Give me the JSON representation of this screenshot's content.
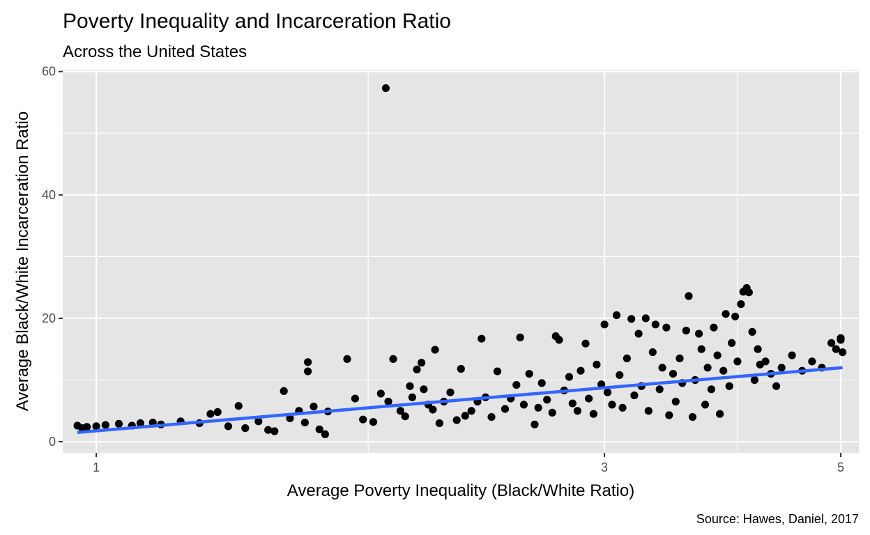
{
  "chart_data": {
    "type": "scatter",
    "title": "Poverty Inequality and Incarceration Ratio",
    "subtitle": "Across the United States",
    "xlabel": "Average Poverty Inequality (Black/White Ratio)",
    "ylabel": "Average Black/White Incarceration Ratio",
    "caption": "Source: Hawes, Daniel, 2017",
    "x_scale": "log",
    "xlim": [
      0.93,
      5.2
    ],
    "ylim": [
      -1.8,
      60.3
    ],
    "x_ticks": [
      {
        "value": 1,
        "label": "1"
      },
      {
        "value": 3,
        "label": "3"
      },
      {
        "value": 5,
        "label": "5"
      }
    ],
    "x_minor_gridlines": [
      1.8,
      4
    ],
    "y_ticks": [
      {
        "value": 0,
        "label": "0"
      },
      {
        "value": 20,
        "label": "20"
      },
      {
        "value": 40,
        "label": "40"
      },
      {
        "value": 60,
        "label": "60"
      }
    ],
    "y_minor_gridlines": [
      10,
      30,
      50
    ],
    "grid": true,
    "colors": {
      "panel": "#e5e5e5",
      "grid": "#ffffff",
      "points": "#000000",
      "fit_line": "#3366ff"
    },
    "fit_line": {
      "method": "lm",
      "points": [
        [
          0.96,
          1.5
        ],
        [
          5.02,
          12.0
        ]
      ]
    },
    "series": [
      {
        "values": [
          [
            0.96,
            2.6
          ],
          [
            0.97,
            2.2
          ],
          [
            0.98,
            2.4
          ],
          [
            1.0,
            2.5
          ],
          [
            1.02,
            2.7
          ],
          [
            1.05,
            2.9
          ],
          [
            1.08,
            2.6
          ],
          [
            1.1,
            3.0
          ],
          [
            1.13,
            3.1
          ],
          [
            1.15,
            2.8
          ],
          [
            1.2,
            3.3
          ],
          [
            1.25,
            3.0
          ],
          [
            1.28,
            4.5
          ],
          [
            1.3,
            4.8
          ],
          [
            1.33,
            2.5
          ],
          [
            1.36,
            5.8
          ],
          [
            1.38,
            2.2
          ],
          [
            1.42,
            3.3
          ],
          [
            1.45,
            1.9
          ],
          [
            1.47,
            1.7
          ],
          [
            1.5,
            8.2
          ],
          [
            1.52,
            3.8
          ],
          [
            1.55,
            5.0
          ],
          [
            1.57,
            3.1
          ],
          [
            1.58,
            12.9
          ],
          [
            1.58,
            11.4
          ],
          [
            1.6,
            5.7
          ],
          [
            1.62,
            2.0
          ],
          [
            1.64,
            1.2
          ],
          [
            1.65,
            4.9
          ],
          [
            1.72,
            13.4
          ],
          [
            1.75,
            7.0
          ],
          [
            1.78,
            3.6
          ],
          [
            1.82,
            3.2
          ],
          [
            1.85,
            7.8
          ],
          [
            1.88,
            6.5
          ],
          [
            1.9,
            13.4
          ],
          [
            1.93,
            5.0
          ],
          [
            1.95,
            4.1
          ],
          [
            1.97,
            9.0
          ],
          [
            1.98,
            7.2
          ],
          [
            2.0,
            11.7
          ],
          [
            2.02,
            12.8
          ],
          [
            2.03,
            8.5
          ],
          [
            2.05,
            6.0
          ],
          [
            2.07,
            5.2
          ],
          [
            2.08,
            14.9
          ],
          [
            2.1,
            3.0
          ],
          [
            2.12,
            6.5
          ],
          [
            2.15,
            8.0
          ],
          [
            2.18,
            3.5
          ],
          [
            2.2,
            11.8
          ],
          [
            2.22,
            4.2
          ],
          [
            2.25,
            5.0
          ],
          [
            2.28,
            6.5
          ],
          [
            2.3,
            16.7
          ],
          [
            2.32,
            7.2
          ],
          [
            2.35,
            4.0
          ],
          [
            2.38,
            11.4
          ],
          [
            2.42,
            5.3
          ],
          [
            2.45,
            7.0
          ],
          [
            2.48,
            9.2
          ],
          [
            2.5,
            16.9
          ],
          [
            2.52,
            6.0
          ],
          [
            2.55,
            11.0
          ],
          [
            2.58,
            2.8
          ],
          [
            2.6,
            5.5
          ],
          [
            2.62,
            9.5
          ],
          [
            2.65,
            6.8
          ],
          [
            2.68,
            4.7
          ],
          [
            2.7,
            17.1
          ],
          [
            2.72,
            16.5
          ],
          [
            2.75,
            8.3
          ],
          [
            2.78,
            10.5
          ],
          [
            2.8,
            6.2
          ],
          [
            2.83,
            5.0
          ],
          [
            2.85,
            11.5
          ],
          [
            2.88,
            15.9
          ],
          [
            2.9,
            7.0
          ],
          [
            2.93,
            4.5
          ],
          [
            2.95,
            12.5
          ],
          [
            2.98,
            9.3
          ],
          [
            3.0,
            19.0
          ],
          [
            3.02,
            8.0
          ],
          [
            3.05,
            6.0
          ],
          [
            3.08,
            20.5
          ],
          [
            3.1,
            10.8
          ],
          [
            3.12,
            5.5
          ],
          [
            3.15,
            13.5
          ],
          [
            3.18,
            19.9
          ],
          [
            3.2,
            7.5
          ],
          [
            3.23,
            17.5
          ],
          [
            3.25,
            9.0
          ],
          [
            3.28,
            20.0
          ],
          [
            3.3,
            5.0
          ],
          [
            3.33,
            14.5
          ],
          [
            3.35,
            19.0
          ],
          [
            3.38,
            8.5
          ],
          [
            3.4,
            12.0
          ],
          [
            3.43,
            18.5
          ],
          [
            3.45,
            4.3
          ],
          [
            3.48,
            11.0
          ],
          [
            3.5,
            6.5
          ],
          [
            3.53,
            13.5
          ],
          [
            3.55,
            9.5
          ],
          [
            3.58,
            18.0
          ],
          [
            3.6,
            23.6
          ],
          [
            3.63,
            4.0
          ],
          [
            3.65,
            10.0
          ],
          [
            3.68,
            17.5
          ],
          [
            3.7,
            15.0
          ],
          [
            3.73,
            6.0
          ],
          [
            3.75,
            12.0
          ],
          [
            3.78,
            8.5
          ],
          [
            3.8,
            18.5
          ],
          [
            3.83,
            14.0
          ],
          [
            3.85,
            4.5
          ],
          [
            3.88,
            11.5
          ],
          [
            3.9,
            20.7
          ],
          [
            3.93,
            9.0
          ],
          [
            3.95,
            16.0
          ],
          [
            3.98,
            20.3
          ],
          [
            4.0,
            13.0
          ],
          [
            4.03,
            22.3
          ],
          [
            4.05,
            24.3
          ],
          [
            4.08,
            24.9
          ],
          [
            4.1,
            24.2
          ],
          [
            4.13,
            17.8
          ],
          [
            4.15,
            10.0
          ],
          [
            4.18,
            15.0
          ],
          [
            4.2,
            12.5
          ],
          [
            4.25,
            13.0
          ],
          [
            4.3,
            11.0
          ],
          [
            4.35,
            9.0
          ],
          [
            4.4,
            12.0
          ],
          [
            4.5,
            14.0
          ],
          [
            4.6,
            11.5
          ],
          [
            4.7,
            13.0
          ],
          [
            4.8,
            12.0
          ],
          [
            4.9,
            16.0
          ],
          [
            4.95,
            15.0
          ],
          [
            5.0,
            16.5
          ],
          [
            5.02,
            14.5
          ],
          [
            5.0,
            16.8
          ],
          [
            1.87,
            57.3
          ]
        ]
      }
    ]
  }
}
